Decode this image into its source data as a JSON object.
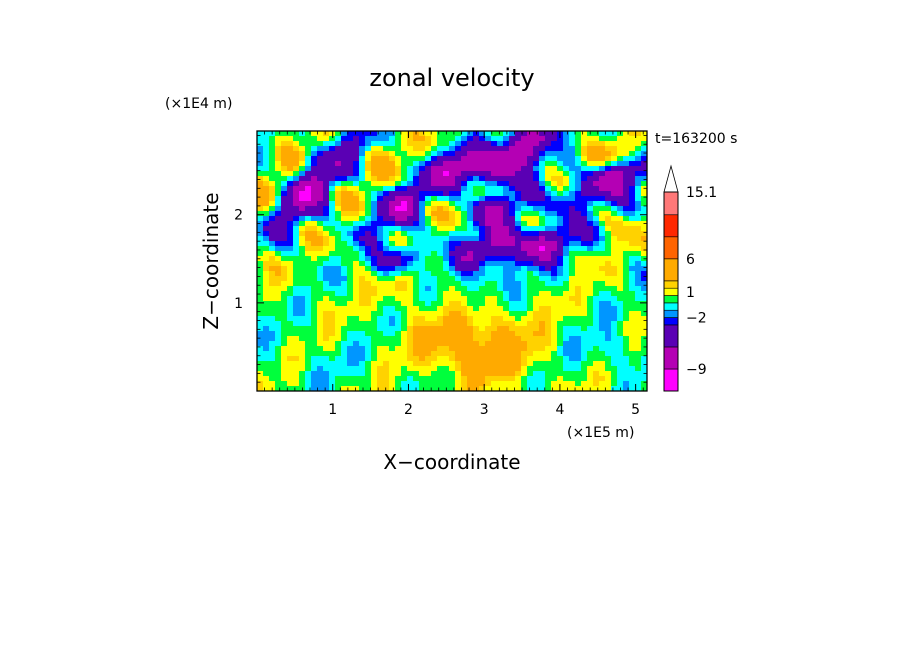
{
  "chart_data": {
    "type": "heatmap",
    "title": "zonal velocity",
    "xlabel": "X−coordinate",
    "ylabel": "Z−coordinate",
    "x_scale_label": "(×1E5 m)",
    "y_scale_label": "(×1E4 m)",
    "time_label": "t=163200 s",
    "xlim": [
      0,
      5.15
    ],
    "ylim": [
      0,
      2.95
    ],
    "x_ticks": [
      1,
      2,
      3,
      4,
      5
    ],
    "y_ticks": [
      1,
      2
    ],
    "x_tick_labels": [
      "1",
      "2",
      "3",
      "4",
      "5"
    ],
    "y_tick_labels": [
      "1",
      "2"
    ],
    "colorbar": {
      "levels": [
        -12,
        -9,
        -6,
        -3,
        -2,
        -1,
        0,
        1,
        2,
        3,
        6,
        9,
        12,
        15.1
      ],
      "labels": [
        "15.1",
        "6",
        "1",
        "−2",
        "−9"
      ],
      "label_values": [
        15.1,
        6,
        1.5,
        -2,
        -9
      ],
      "colors": [
        "#ff00ff",
        "#b400b4",
        "#5a00b4",
        "#0000ff",
        "#0096ff",
        "#00ffff",
        "#00ff3c",
        "#ffff00",
        "#ffd200",
        "#ffaa00",
        "#ff6400",
        "#ff2800",
        "#ff7878",
        "#ffb4b4"
      ],
      "extend": "max"
    },
    "features": [
      {
        "x": 2.9,
        "z": 0.45,
        "value": 4
      },
      {
        "x": 2.8,
        "z": 0.7,
        "value": 2
      },
      {
        "x": 3.0,
        "z": 1.2,
        "value": -1
      },
      {
        "x": 2.6,
        "z": 1.4,
        "value": -2
      },
      {
        "x": 4.7,
        "z": 0.45,
        "value": -1
      },
      {
        "x": 0.7,
        "z": 0.3,
        "value": 0
      },
      {
        "x": 2.0,
        "z": 0.3,
        "value": 0
      },
      {
        "x": 0.5,
        "z": 2.4,
        "value": 3
      },
      {
        "x": 0.8,
        "z": 2.6,
        "value": 3
      },
      {
        "x": 1.4,
        "z": 2.5,
        "value": 3
      },
      {
        "x": 2.2,
        "z": 1.3,
        "value": 3
      },
      {
        "x": 4.5,
        "z": 2.65,
        "value": 3
      },
      {
        "x": 0.6,
        "z": 2.3,
        "value": -8
      },
      {
        "x": 1.1,
        "z": 2.6,
        "value": -5
      },
      {
        "x": 1.9,
        "z": 2.1,
        "value": -6
      },
      {
        "x": 2.7,
        "z": 2.55,
        "value": -8
      },
      {
        "x": 3.3,
        "z": 2.55,
        "value": -7
      },
      {
        "x": 3.6,
        "z": 2.85,
        "value": -8
      },
      {
        "x": 3.2,
        "z": 2.05,
        "value": -5
      },
      {
        "x": 3.75,
        "z": 1.65,
        "value": -8
      },
      {
        "x": 3.1,
        "z": 1.65,
        "value": -6
      },
      {
        "x": 4.75,
        "z": 2.45,
        "value": -7
      },
      {
        "x": 4.3,
        "z": 2.2,
        "value": -4
      },
      {
        "x": 1.9,
        "z": 1.5,
        "value": -5
      }
    ]
  }
}
